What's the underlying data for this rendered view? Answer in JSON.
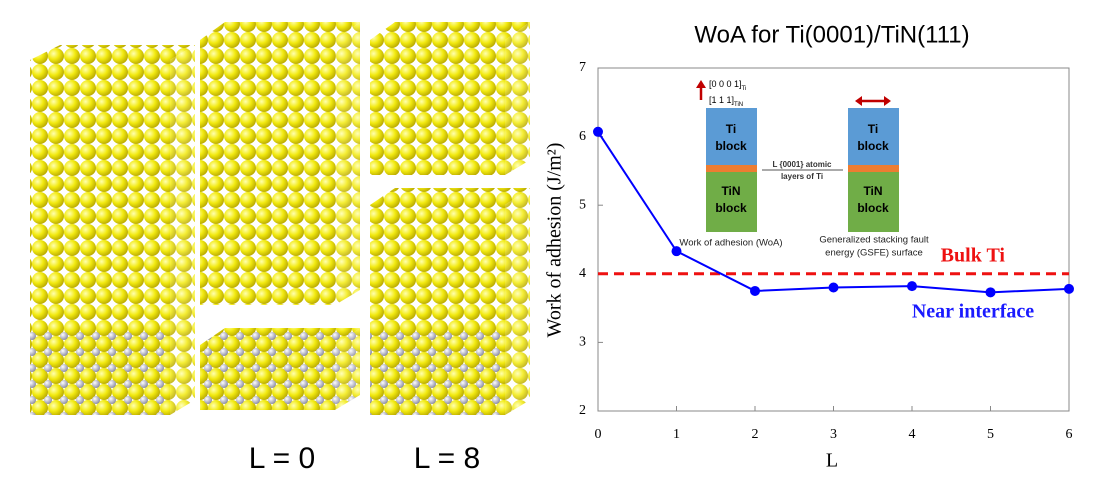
{
  "chart_data": {
    "type": "line",
    "title": "WoA for Ti(0001)/TiN(111)",
    "x_label": "L",
    "y_label": "Work of adhesion (J/m²)",
    "x": [
      0,
      1,
      2,
      3,
      4,
      5,
      6
    ],
    "values": [
      6.07,
      4.33,
      3.75,
      3.8,
      3.82,
      3.73,
      3.78
    ],
    "color": "#0000ff",
    "xlim": [
      0,
      6
    ],
    "xticks": [
      0,
      1,
      2,
      3,
      4,
      5,
      6
    ],
    "ylim": [
      2,
      7
    ],
    "yticks": [
      2,
      3,
      4,
      5,
      6,
      7
    ],
    "reference_lines": [
      {
        "value": 4,
        "label": "Bulk Ti",
        "color": "#ee1111"
      }
    ],
    "annotations": [
      {
        "text": "Near interface",
        "color": "#1a1aff"
      }
    ]
  },
  "figure_labels": [
    "L = 0",
    "L = 8"
  ],
  "inset": {
    "direction_labels": [
      {
        "text": "[0 0 0 1]",
        "sub": "Ti"
      },
      {
        "text": "[1 1 1]",
        "sub": "TiN"
      }
    ],
    "ti_block": [
      "Ti",
      "block"
    ],
    "tin_block": [
      "TiN",
      "block"
    ],
    "layers_label": [
      "L {0001} atomic",
      "layers of Ti"
    ],
    "captions": [
      [
        "Work of adhesion (WoA)"
      ],
      [
        "Generalized stacking fault",
        "energy (GSFE) surface"
      ]
    ]
  }
}
